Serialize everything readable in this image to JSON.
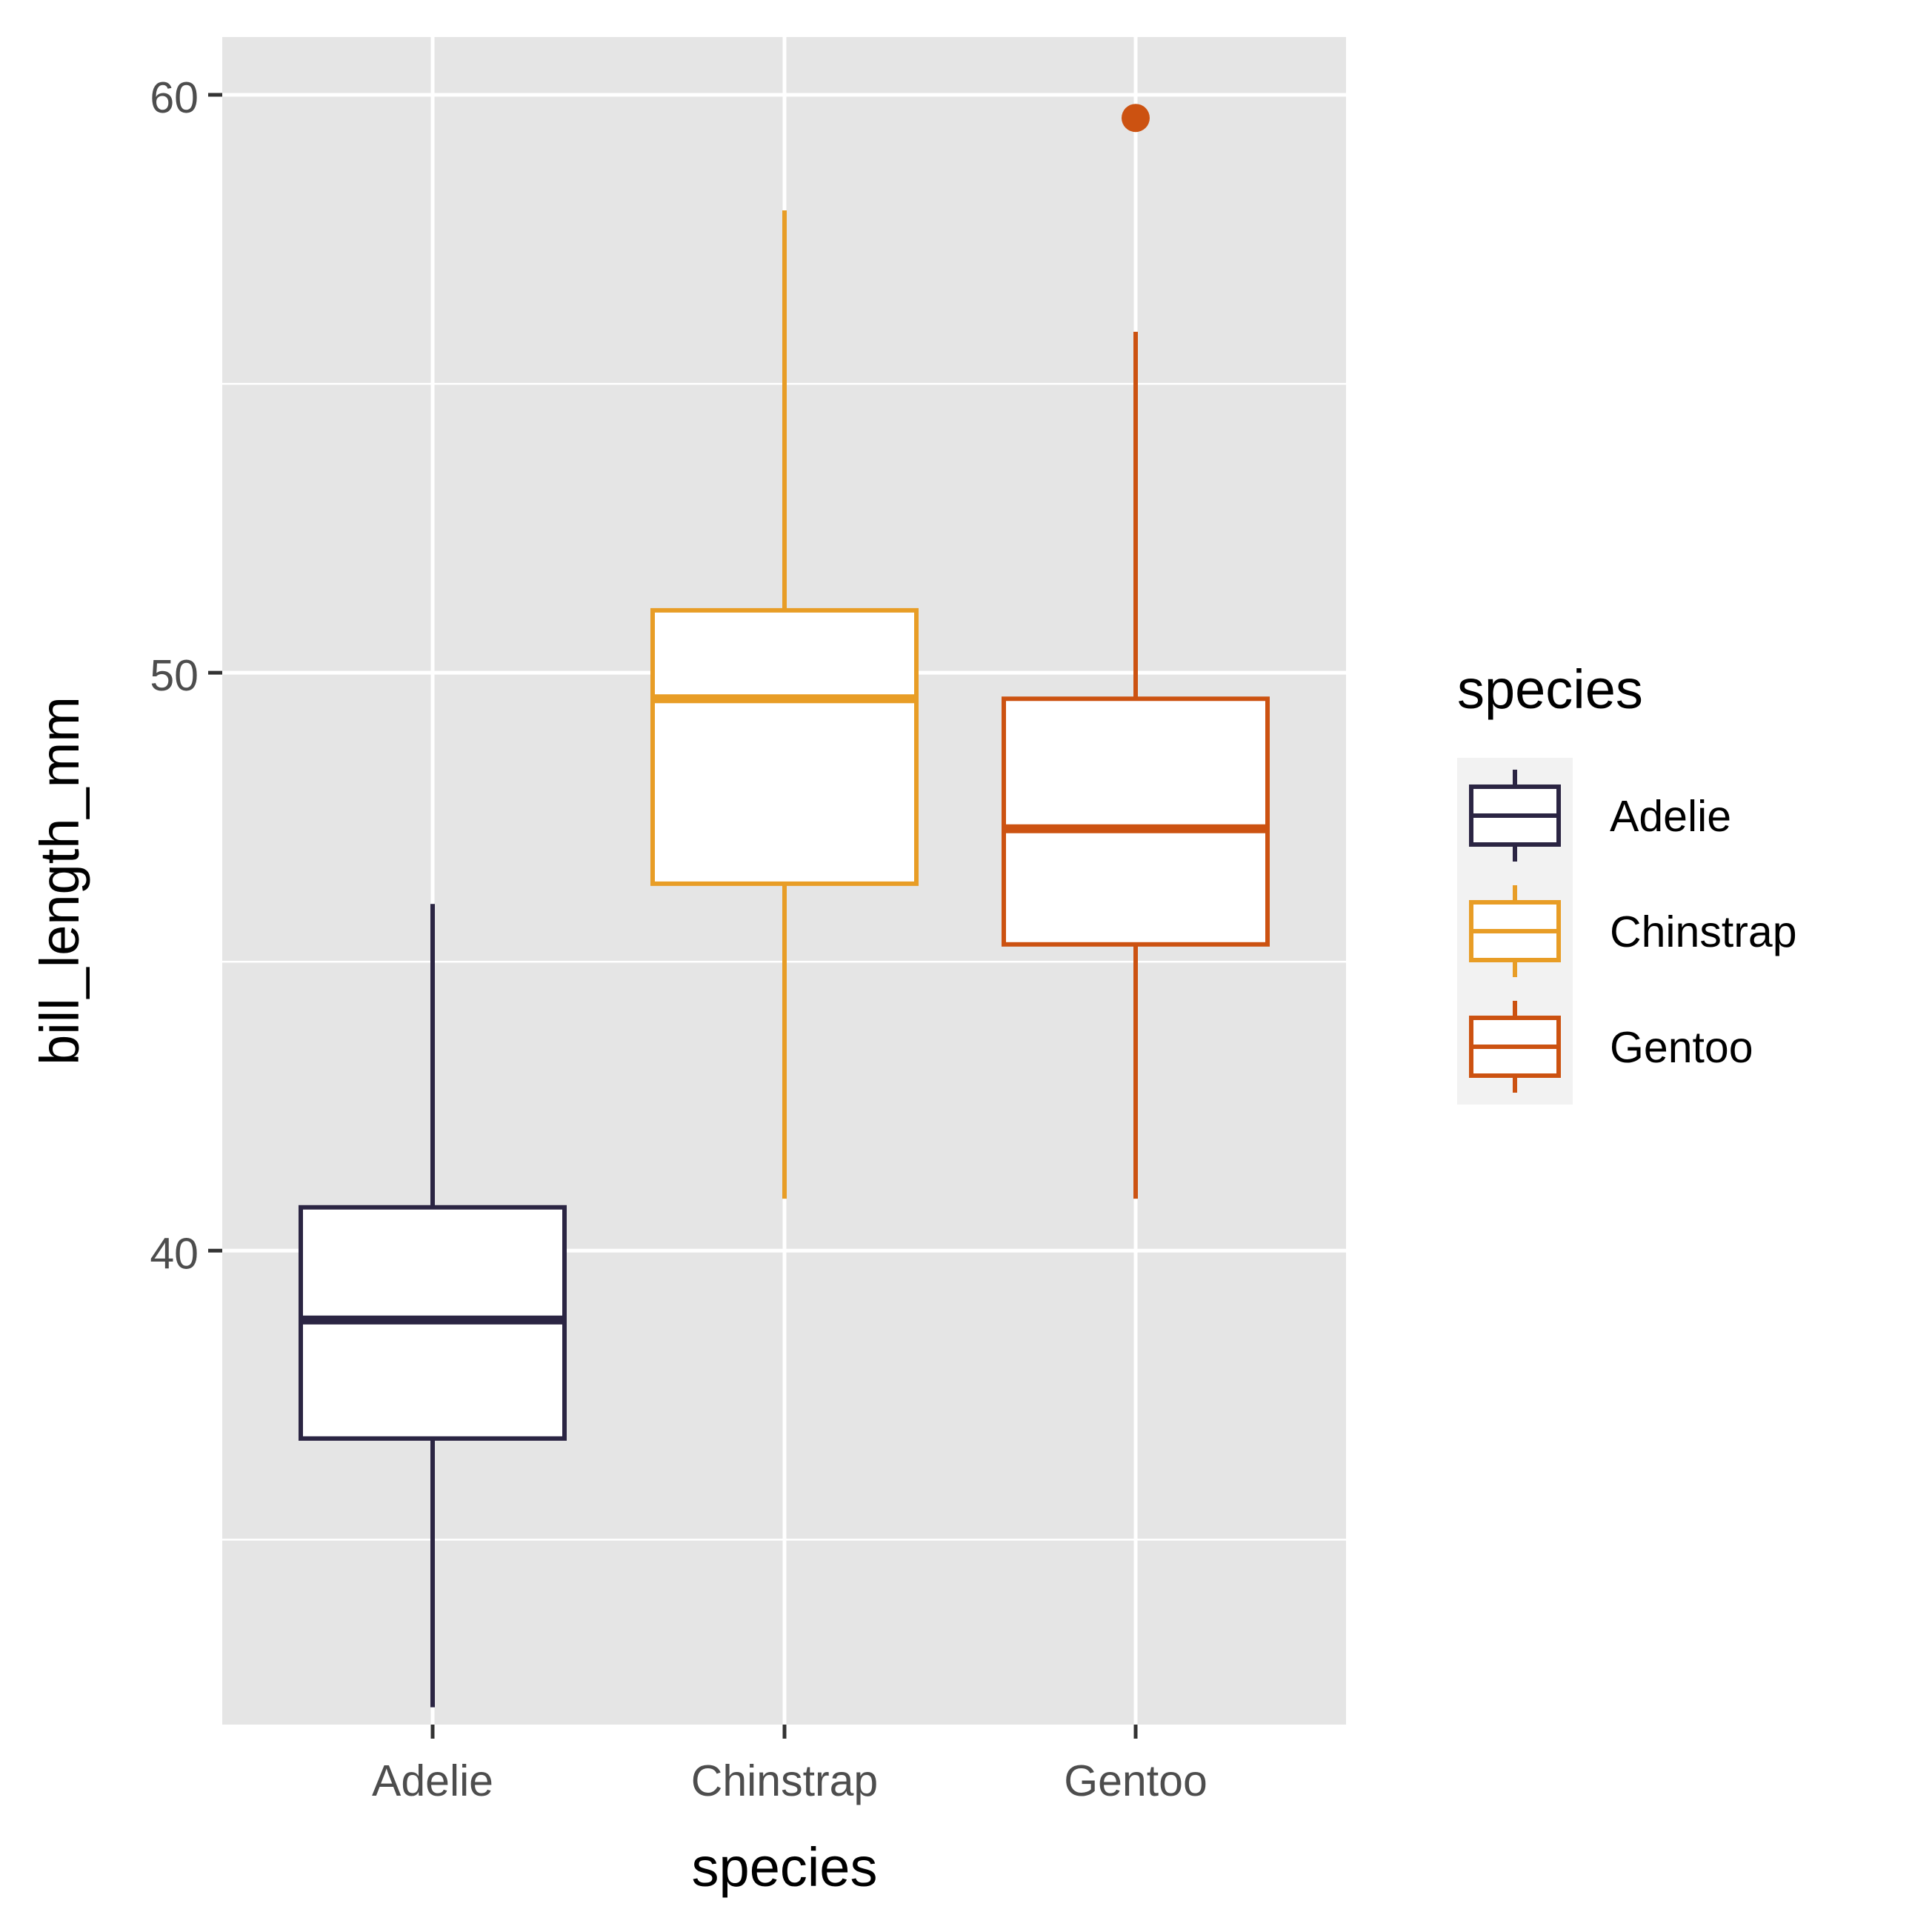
{
  "chart_data": {
    "type": "boxplot",
    "xlabel": "species",
    "ylabel": "bill_length_mm",
    "categories": [
      "Adelie",
      "Chinstrap",
      "Gentoo"
    ],
    "ylim": [
      31.8,
      61.0
    ],
    "y_ticks": [
      40,
      50,
      60
    ],
    "y_minor_ticks": [
      35,
      45,
      55
    ],
    "grid": true,
    "legend_position": "right",
    "legend": {
      "title": "species",
      "items": [
        "Adelie",
        "Chinstrap",
        "Gentoo"
      ]
    },
    "colors": {
      "Adelie": "#2b2543",
      "Chinstrap": "#e89d26",
      "Gentoo": "#cc5211",
      "panel": "#e5e5e5",
      "grid": "#ffffff",
      "tick_text": "#4d4d4d",
      "title_text": "#000000"
    },
    "boxes": [
      {
        "category": "Adelie",
        "lower_whisker": 32.1,
        "q1": 36.75,
        "median": 38.8,
        "q3": 40.75,
        "upper_whisker": 46.0,
        "outliers": []
      },
      {
        "category": "Chinstrap",
        "lower_whisker": 40.9,
        "q1": 46.35,
        "median": 49.55,
        "q3": 51.08,
        "upper_whisker": 58.0,
        "outliers": []
      },
      {
        "category": "Gentoo",
        "lower_whisker": 40.9,
        "q1": 45.3,
        "median": 47.3,
        "q3": 49.55,
        "upper_whisker": 55.9,
        "outliers": [
          59.6
        ]
      }
    ]
  }
}
